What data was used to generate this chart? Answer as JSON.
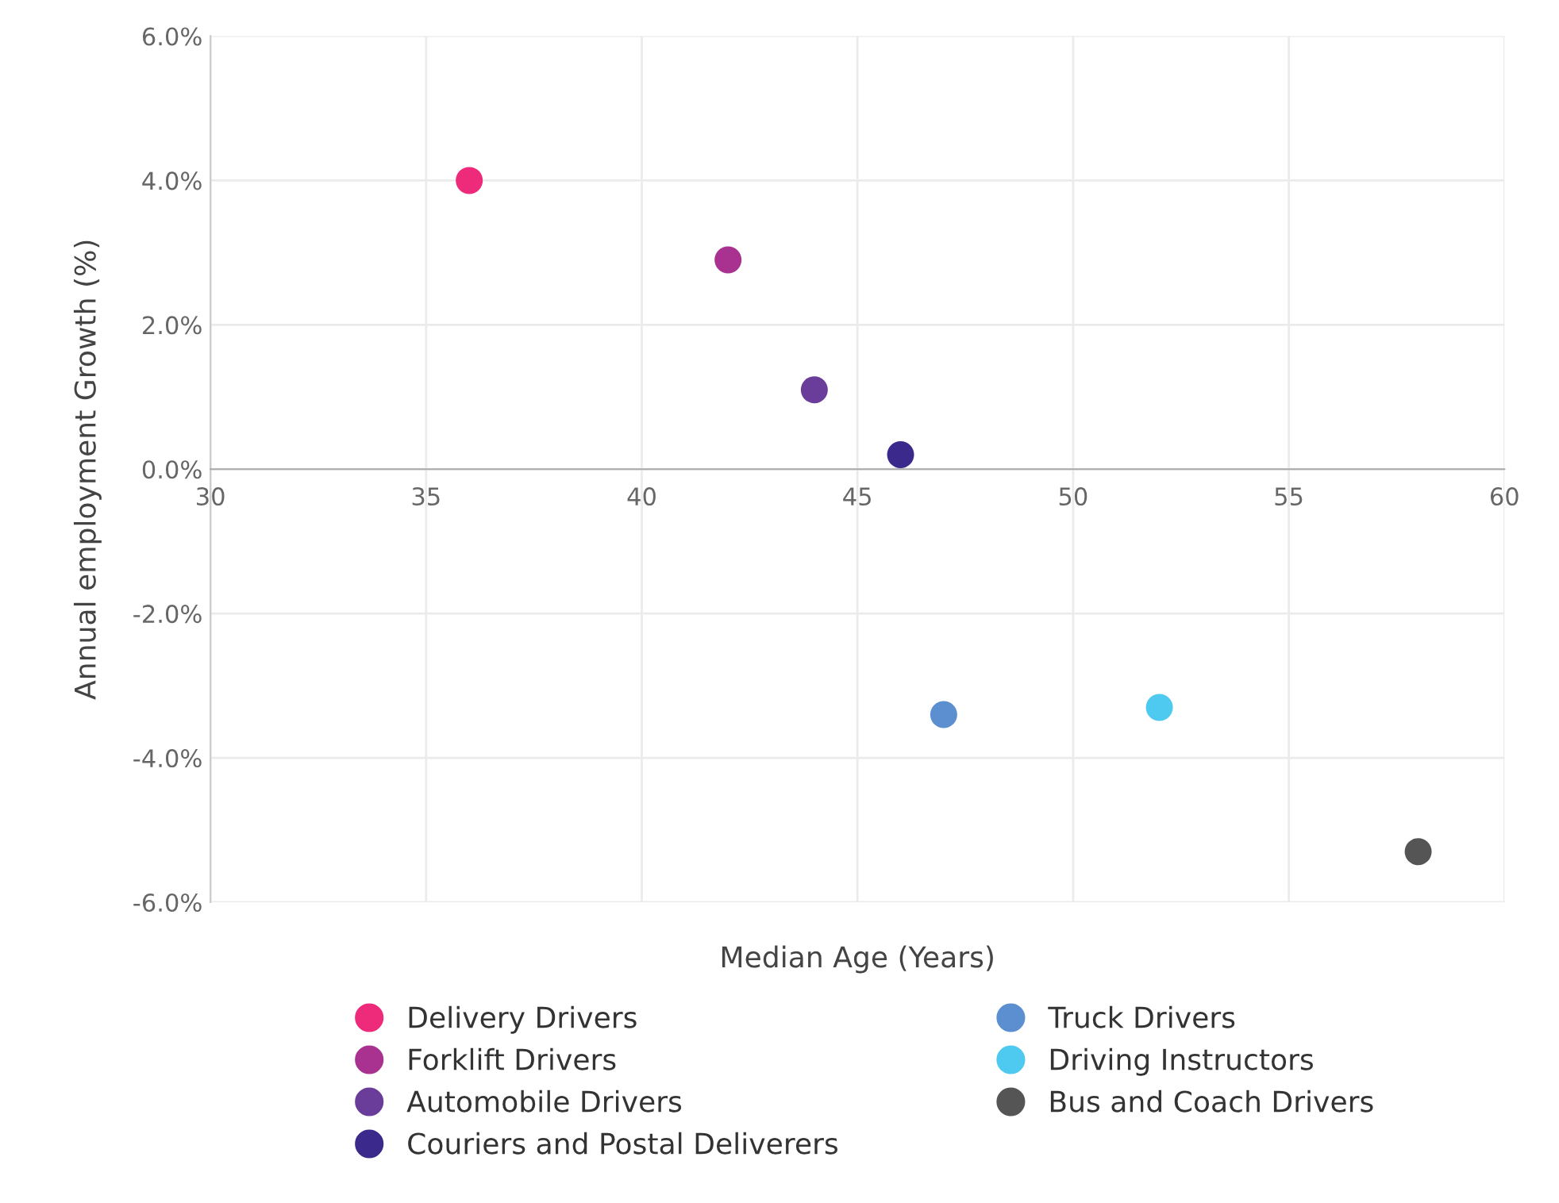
{
  "chart_data": {
    "type": "scatter",
    "xlabel": "Median Age (Years)",
    "ylabel": "Annual employment Growth (%)",
    "xlim": [
      30,
      60
    ],
    "xticks": [
      30,
      35,
      40,
      45,
      50,
      55,
      60
    ],
    "ylim": [
      -6,
      6
    ],
    "yticks": [
      {
        "value": -6,
        "label": "-6.0%"
      },
      {
        "value": -4,
        "label": "-4.0%"
      },
      {
        "value": -2,
        "label": "-2.0%"
      },
      {
        "value": 0,
        "label": "0.0%"
      },
      {
        "value": 2,
        "label": "2.0%"
      },
      {
        "value": 4,
        "label": "4.0%"
      },
      {
        "value": 6,
        "label": "6.0%"
      }
    ],
    "grid": true,
    "legend": "bottom",
    "marker": "circle",
    "series": [
      {
        "name": "Delivery Drivers",
        "color": "#ee2a7b",
        "x": [
          36
        ],
        "values": [
          4.0
        ]
      },
      {
        "name": "Forklift Drivers",
        "color": "#a9318f",
        "x": [
          42
        ],
        "values": [
          2.9
        ]
      },
      {
        "name": "Automobile Drivers",
        "color": "#6a3d9a",
        "x": [
          44
        ],
        "values": [
          1.1
        ]
      },
      {
        "name": "Couriers and Postal Deliverers",
        "color": "#3b2a8c",
        "x": [
          46
        ],
        "values": [
          0.2
        ]
      },
      {
        "name": "Truck Drivers",
        "color": "#5b8fd0",
        "x": [
          47
        ],
        "values": [
          -3.4
        ]
      },
      {
        "name": "Driving Instructors",
        "color": "#4ec9ef",
        "x": [
          52
        ],
        "values": [
          -3.3
        ]
      },
      {
        "name": "Bus and Coach Drivers",
        "color": "#555555",
        "x": [
          58
        ],
        "values": [
          -5.3
        ]
      }
    ]
  }
}
